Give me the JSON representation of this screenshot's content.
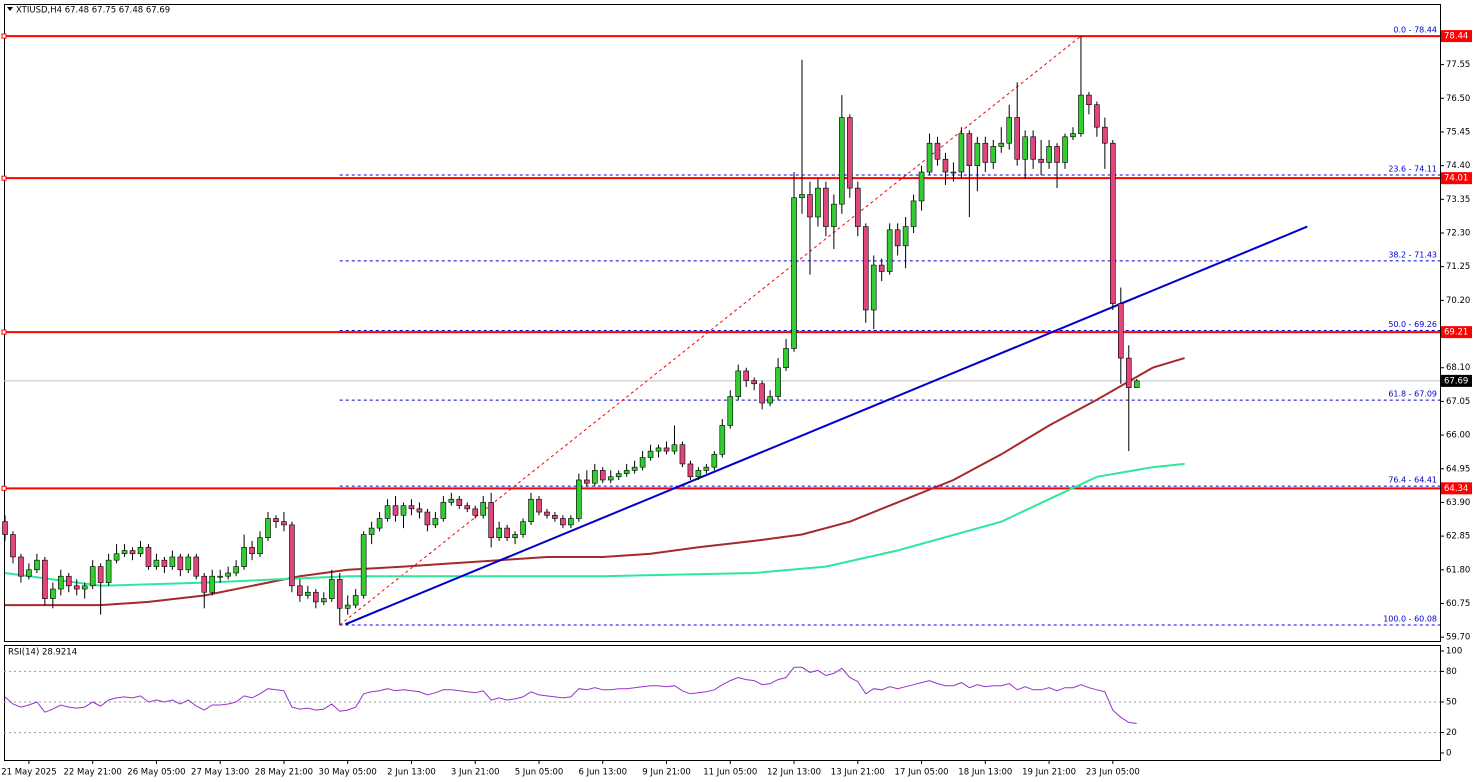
{
  "chart_data": {
    "type": "candlestick",
    "title": "XTIUSD,H4 67.48 67.75 67.48 67.69",
    "bull_color": "#33cc33",
    "bear_color": "#e0457b",
    "ohlc": [
      [
        63.3,
        63.5,
        62.7,
        62.9
      ],
      [
        62.9,
        63.0,
        62.0,
        62.2
      ],
      [
        62.2,
        62.3,
        61.4,
        61.6
      ],
      [
        61.6,
        62.0,
        61.5,
        61.8
      ],
      [
        61.8,
        62.3,
        61.7,
        62.1
      ],
      [
        62.1,
        62.2,
        60.7,
        60.9
      ],
      [
        60.9,
        61.4,
        60.6,
        61.2
      ],
      [
        61.2,
        61.8,
        61.0,
        61.6
      ],
      [
        61.6,
        61.7,
        61.1,
        61.3
      ],
      [
        61.3,
        61.5,
        61.0,
        61.2
      ],
      [
        61.2,
        61.4,
        60.9,
        61.3
      ],
      [
        61.3,
        62.1,
        61.2,
        61.9
      ],
      [
        61.9,
        62.0,
        60.4,
        61.4
      ],
      [
        61.4,
        62.3,
        61.3,
        62.1
      ],
      [
        62.1,
        62.6,
        62.0,
        62.3
      ],
      [
        62.3,
        62.6,
        62.2,
        62.4
      ],
      [
        62.4,
        62.5,
        62.1,
        62.3
      ],
      [
        62.3,
        62.7,
        62.2,
        62.5
      ],
      [
        62.5,
        62.6,
        61.8,
        61.9
      ],
      [
        61.9,
        62.3,
        61.8,
        62.1
      ],
      [
        62.1,
        62.2,
        61.7,
        61.9
      ],
      [
        61.9,
        62.4,
        61.8,
        62.2
      ],
      [
        62.2,
        62.3,
        61.6,
        61.8
      ],
      [
        61.8,
        62.3,
        61.7,
        62.2
      ],
      [
        62.2,
        62.3,
        61.5,
        61.6
      ],
      [
        61.6,
        61.7,
        60.6,
        61.1
      ],
      [
        61.1,
        61.8,
        61.0,
        61.6
      ],
      [
        61.6,
        61.8,
        61.4,
        61.6
      ],
      [
        61.6,
        61.9,
        61.5,
        61.7
      ],
      [
        61.7,
        62.1,
        61.6,
        61.9
      ],
      [
        61.9,
        62.9,
        61.8,
        62.5
      ],
      [
        62.5,
        62.7,
        62.1,
        62.3
      ],
      [
        62.3,
        63.0,
        62.2,
        62.8
      ],
      [
        62.8,
        63.6,
        62.7,
        63.4
      ],
      [
        63.4,
        63.5,
        63.1,
        63.3
      ],
      [
        63.3,
        63.6,
        63.0,
        63.2
      ],
      [
        63.2,
        63.3,
        61.1,
        61.3
      ],
      [
        61.3,
        61.5,
        60.8,
        61.0
      ],
      [
        61.0,
        61.3,
        60.9,
        61.1
      ],
      [
        61.1,
        61.2,
        60.6,
        60.8
      ],
      [
        60.8,
        61.1,
        60.7,
        60.9
      ],
      [
        60.9,
        61.8,
        60.8,
        61.5
      ],
      [
        61.5,
        61.7,
        60.08,
        60.6
      ],
      [
        60.6,
        61.0,
        60.4,
        60.7
      ],
      [
        60.7,
        61.2,
        60.6,
        61.0
      ],
      [
        61.0,
        63.0,
        60.9,
        62.9
      ],
      [
        62.9,
        63.3,
        62.6,
        63.1
      ],
      [
        63.1,
        63.6,
        63.0,
        63.4
      ],
      [
        63.4,
        64.0,
        63.3,
        63.8
      ],
      [
        63.8,
        64.1,
        63.3,
        63.5
      ],
      [
        63.5,
        63.9,
        63.1,
        63.8
      ],
      [
        63.8,
        64.0,
        63.5,
        63.7
      ],
      [
        63.7,
        63.9,
        63.4,
        63.6
      ],
      [
        63.6,
        63.7,
        63.0,
        63.2
      ],
      [
        63.2,
        63.6,
        63.1,
        63.4
      ],
      [
        63.4,
        64.1,
        63.3,
        63.9
      ],
      [
        63.9,
        64.2,
        63.8,
        64.0
      ],
      [
        64.0,
        64.1,
        63.7,
        63.8
      ],
      [
        63.8,
        63.9,
        63.6,
        63.7
      ],
      [
        63.7,
        63.8,
        63.4,
        63.5
      ],
      [
        63.5,
        64.1,
        63.4,
        63.9
      ],
      [
        63.9,
        64.2,
        62.5,
        62.8
      ],
      [
        62.8,
        63.3,
        62.7,
        63.1
      ],
      [
        63.1,
        63.2,
        62.7,
        62.8
      ],
      [
        62.8,
        63.0,
        62.6,
        62.9
      ],
      [
        62.9,
        63.4,
        62.8,
        63.3
      ],
      [
        63.3,
        64.2,
        63.2,
        64.0
      ],
      [
        64.0,
        64.1,
        63.5,
        63.6
      ],
      [
        63.6,
        63.7,
        63.4,
        63.5
      ],
      [
        63.5,
        63.6,
        63.3,
        63.4
      ],
      [
        63.4,
        63.5,
        63.1,
        63.2
      ],
      [
        63.2,
        63.5,
        63.1,
        63.4
      ],
      [
        63.4,
        64.8,
        63.3,
        64.6
      ],
      [
        64.6,
        64.9,
        64.4,
        64.5
      ],
      [
        64.5,
        65.1,
        64.4,
        64.9
      ],
      [
        64.9,
        65.0,
        64.5,
        64.6
      ],
      [
        64.6,
        64.9,
        64.5,
        64.7
      ],
      [
        64.7,
        64.9,
        64.6,
        64.8
      ],
      [
        64.8,
        65.1,
        64.7,
        64.9
      ],
      [
        64.9,
        65.2,
        64.8,
        65.0
      ],
      [
        65.0,
        65.5,
        64.9,
        65.3
      ],
      [
        65.3,
        65.7,
        65.2,
        65.5
      ],
      [
        65.5,
        65.7,
        65.3,
        65.6
      ],
      [
        65.6,
        65.8,
        65.4,
        65.5
      ],
      [
        65.5,
        66.3,
        65.4,
        65.7
      ],
      [
        65.7,
        65.8,
        65.0,
        65.1
      ],
      [
        65.1,
        65.2,
        64.6,
        64.7
      ],
      [
        64.7,
        65.0,
        64.6,
        64.9
      ],
      [
        64.9,
        65.1,
        64.8,
        65.0
      ],
      [
        65.0,
        65.5,
        64.9,
        65.4
      ],
      [
        65.4,
        66.5,
        65.3,
        66.3
      ],
      [
        66.3,
        67.4,
        66.2,
        67.2
      ],
      [
        67.2,
        68.2,
        67.1,
        68.0
      ],
      [
        68.0,
        68.1,
        67.5,
        67.7
      ],
      [
        67.7,
        67.8,
        67.4,
        67.6
      ],
      [
        67.6,
        67.7,
        66.8,
        67.0
      ],
      [
        67.0,
        67.4,
        66.9,
        67.2
      ],
      [
        67.2,
        68.4,
        67.1,
        68.1
      ],
      [
        68.1,
        69.0,
        68.0,
        68.7
      ],
      [
        68.7,
        74.2,
        68.6,
        73.4
      ],
      [
        73.4,
        77.7,
        72.9,
        73.5
      ],
      [
        73.5,
        73.9,
        71.0,
        72.8
      ],
      [
        72.8,
        74.0,
        72.5,
        73.7
      ],
      [
        73.7,
        73.9,
        72.2,
        72.5
      ],
      [
        72.5,
        73.5,
        71.8,
        73.2
      ],
      [
        73.2,
        76.6,
        72.9,
        75.9
      ],
      [
        75.9,
        76.0,
        73.4,
        73.7
      ],
      [
        73.7,
        73.9,
        72.2,
        72.5
      ],
      [
        72.5,
        72.6,
        69.5,
        69.9
      ],
      [
        69.9,
        71.6,
        69.3,
        71.3
      ],
      [
        71.3,
        71.5,
        70.8,
        71.1
      ],
      [
        71.1,
        72.6,
        71.0,
        72.4
      ],
      [
        72.4,
        72.6,
        71.6,
        71.9
      ],
      [
        71.9,
        72.8,
        71.2,
        72.5
      ],
      [
        72.5,
        73.5,
        72.3,
        73.3
      ],
      [
        73.3,
        74.4,
        73.0,
        74.2
      ],
      [
        74.2,
        75.4,
        74.1,
        75.1
      ],
      [
        75.1,
        75.3,
        74.4,
        74.6
      ],
      [
        74.6,
        74.8,
        73.8,
        74.2
      ],
      [
        74.2,
        74.5,
        73.9,
        74.2
      ],
      [
        74.2,
        75.6,
        74.0,
        75.4
      ],
      [
        75.4,
        75.5,
        72.8,
        74.4
      ],
      [
        74.4,
        75.3,
        73.6,
        75.1
      ],
      [
        75.1,
        75.3,
        74.2,
        74.5
      ],
      [
        74.5,
        75.2,
        74.3,
        75.0
      ],
      [
        75.0,
        75.6,
        74.8,
        75.1
      ],
      [
        75.1,
        76.3,
        74.9,
        75.9
      ],
      [
        75.9,
        77.0,
        74.4,
        74.6
      ],
      [
        74.6,
        75.5,
        74.0,
        75.3
      ],
      [
        75.3,
        75.5,
        74.3,
        74.6
      ],
      [
        74.6,
        75.2,
        74.1,
        74.5
      ],
      [
        74.5,
        75.2,
        74.3,
        75.0
      ],
      [
        75.0,
        75.1,
        73.7,
        74.5
      ],
      [
        74.5,
        75.4,
        74.3,
        75.3
      ],
      [
        75.3,
        75.6,
        75.2,
        75.4
      ],
      [
        75.4,
        78.44,
        75.3,
        76.6
      ],
      [
        76.6,
        76.7,
        76.0,
        76.3
      ],
      [
        76.3,
        76.4,
        75.3,
        75.6
      ],
      [
        75.6,
        75.9,
        74.3,
        75.1
      ],
      [
        75.1,
        75.2,
        69.9,
        70.1
      ],
      [
        70.1,
        70.6,
        67.6,
        68.4
      ],
      [
        68.4,
        68.8,
        65.5,
        67.48
      ],
      [
        67.48,
        67.75,
        67.48,
        67.69
      ]
    ],
    "xticks": [
      {
        "value": 3,
        "label": "21 May 2025"
      },
      {
        "value": 11,
        "label": "22 May 21:00"
      },
      {
        "value": 19,
        "label": "26 May 05:00"
      },
      {
        "value": 27,
        "label": "27 May 13:00"
      },
      {
        "value": 35,
        "label": "28 May 21:00"
      },
      {
        "value": 43,
        "label": "30 May 05:00"
      },
      {
        "value": 51,
        "label": "2 Jun 13:00"
      },
      {
        "value": 59,
        "label": "3 Jun 21:00"
      },
      {
        "value": 67,
        "label": "5 Jun 05:00"
      },
      {
        "value": 75,
        "label": "6 Jun 13:00"
      },
      {
        "value": 83,
        "label": "9 Jun 21:00"
      },
      {
        "value": 91,
        "label": "11 Jun 05:00"
      },
      {
        "value": 99,
        "label": "12 Jun 13:00"
      },
      {
        "value": 107,
        "label": "13 Jun 21:00"
      },
      {
        "value": 115,
        "label": "17 Jun 05:00"
      },
      {
        "value": 123,
        "label": "18 Jun 13:00"
      },
      {
        "value": 131,
        "label": "19 Jun 21:00"
      },
      {
        "value": 139,
        "label": "23 Jun 05:00"
      }
    ],
    "ylim": [
      59.58,
      79.44
    ],
    "yticks": [
      {
        "value": 59.7,
        "label": "59.70"
      },
      60.75,
      {
        "value": 61.8,
        "label": "61.80"
      },
      62.85,
      {
        "value": 63.9,
        "label": "63.90"
      },
      64.95,
      {
        "value": 66.0,
        "label": "66.00"
      },
      67.05,
      {
        "value": 68.1,
        "label": "68.10"
      },
      69.15,
      {
        "value": 70.2,
        "label": "70.20"
      },
      71.25,
      {
        "value": 72.3,
        "label": "72.30"
      },
      73.35,
      {
        "value": 74.4,
        "label": "74.40"
      },
      75.45,
      {
        "value": 76.5,
        "label": "76.50"
      },
      77.55
    ],
    "levels": [
      78.44,
      74.01,
      69.21,
      64.34
    ],
    "level_color": "#ff0000",
    "last_price": 67.69,
    "fib_color": "#0000cc",
    "fib_x": [
      42,
      135
    ],
    "fib_levels": [
      {
        "value": 78.44,
        "label": "0.0 - 78.44"
      },
      {
        "value": 74.11,
        "label": "23.6 - 74.11"
      },
      {
        "value": 71.43,
        "label": "38.2 - 71.43"
      },
      {
        "value": 69.26,
        "label": "50.0 - 69.26"
      },
      {
        "value": 67.09,
        "label": "61.8 - 67.09"
      },
      {
        "value": 64.41,
        "label": "76.4 - 64.41"
      },
      {
        "value": 60.08,
        "label": "100.0 - 60.08"
      }
    ],
    "trendline": {
      "color": "#0000cc",
      "x": [
        42.7,
        163.4
      ],
      "values": [
        60.1,
        72.5
      ]
    },
    "ma": [
      {
        "color": "#a52a2a",
        "x": [
          0,
          12,
          18,
          25,
          31,
          37,
          43,
          50,
          56,
          62,
          68,
          75,
          81,
          87,
          94,
          100,
          106,
          112,
          119,
          125,
          131,
          137,
          144,
          148
        ],
        "values": [
          60.7,
          60.7,
          60.8,
          61.0,
          61.3,
          61.6,
          61.8,
          61.9,
          62.0,
          62.1,
          62.2,
          62.2,
          62.3,
          62.5,
          62.7,
          62.9,
          63.3,
          63.9,
          64.6,
          65.4,
          66.3,
          67.1,
          68.1,
          68.4
        ]
      },
      {
        "color": "#2ee89a",
        "x": [
          0,
          12,
          25,
          43,
          75,
          94,
          103,
          112,
          125,
          131,
          137,
          144,
          148
        ],
        "values": [
          61.7,
          61.3,
          61.4,
          61.6,
          61.6,
          61.7,
          61.9,
          62.4,
          63.3,
          64.0,
          64.7,
          65.0,
          65.1
        ]
      }
    ],
    "rsi": {
      "title": "RSI(14) 28.9214",
      "color": "#9932cc",
      "ylim": [
        -6.9,
        105.9
      ],
      "yticks": [
        100,
        80,
        50,
        20,
        0
      ],
      "values": [
        55,
        48,
        45,
        47,
        50,
        40,
        43,
        47,
        45,
        44,
        45,
        50,
        46,
        52,
        54,
        55,
        54,
        56,
        50,
        52,
        50,
        52,
        48,
        52,
        46,
        42,
        47,
        47,
        48,
        50,
        56,
        54,
        58,
        63,
        62,
        61,
        45,
        43,
        44,
        42,
        43,
        48,
        41,
        42,
        45,
        58,
        60,
        61,
        63,
        61,
        62,
        61,
        60,
        57,
        59,
        62,
        62,
        61,
        60,
        59,
        61,
        52,
        54,
        52,
        53,
        55,
        60,
        57,
        56,
        55,
        54,
        55,
        63,
        62,
        64,
        62,
        62,
        63,
        63,
        64,
        65,
        66,
        66,
        65,
        66,
        61,
        58,
        59,
        60,
        62,
        67,
        71,
        74,
        72,
        71,
        67,
        68,
        72,
        74,
        84,
        84,
        79,
        81,
        76,
        78,
        83,
        74,
        70,
        58,
        63,
        62,
        65,
        63,
        65,
        67,
        69,
        71,
        68,
        66,
        66,
        69,
        64,
        67,
        65,
        66,
        66,
        68,
        62,
        65,
        62,
        62,
        64,
        61,
        64,
        64,
        67,
        64,
        62,
        60,
        42,
        35,
        30,
        28.9214
      ]
    }
  }
}
